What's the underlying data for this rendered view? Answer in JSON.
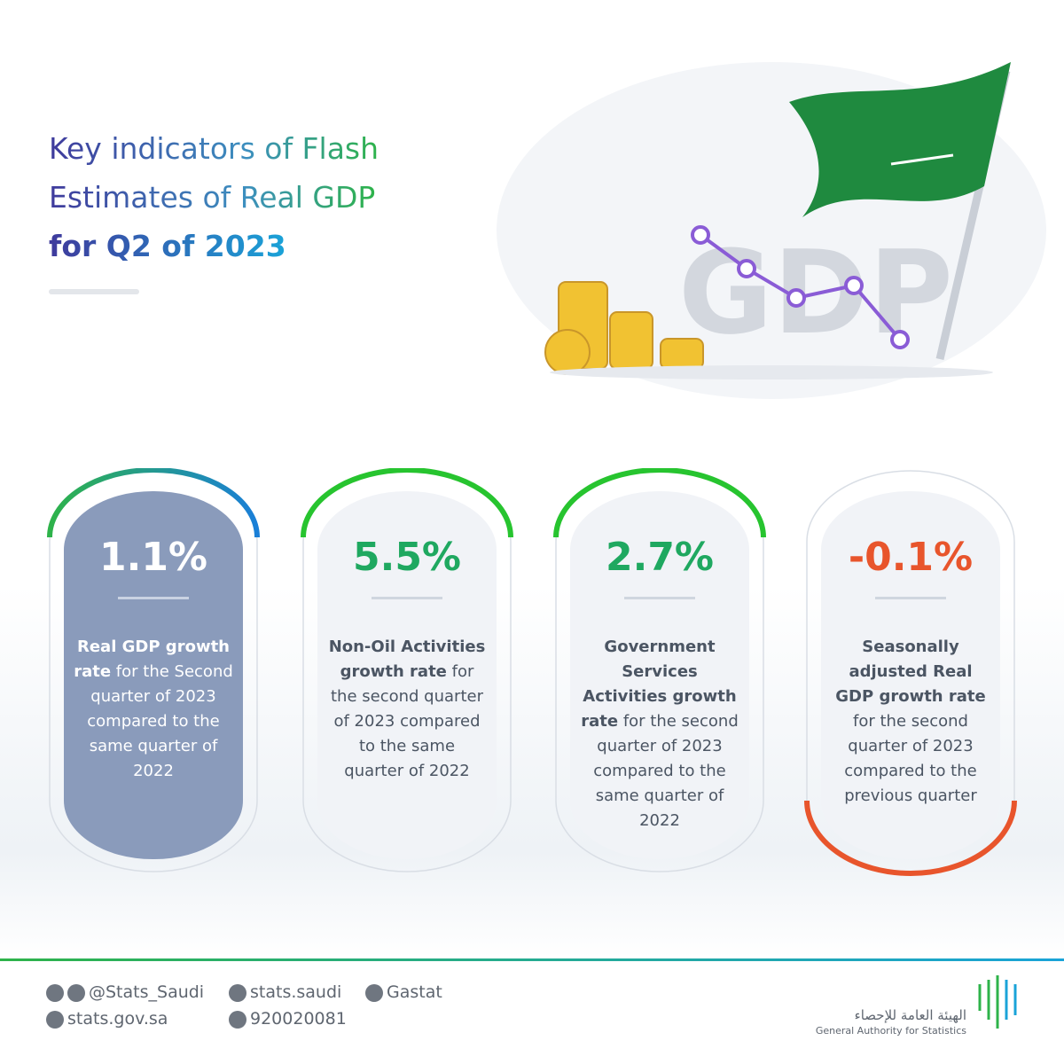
{
  "header": {
    "title": [
      "Key indicators of Flash",
      "Estimates of Real GDP",
      "for Q2 of 2023"
    ]
  },
  "illustration": {
    "label": "GDP"
  },
  "cards": [
    {
      "value": "1.1%",
      "bold": "Real GDP growth rate",
      "text": "for the Second quarter of 2023 compared to the same quarter of 2022"
    },
    {
      "value": "5.5%",
      "bold": "Non-Oil Activities growth rate",
      "text": "for the second quarter of 2023 compared to the same quarter of 2022"
    },
    {
      "value": "2.7%",
      "bold": "Government Services Activities growth rate",
      "text": "for the second quarter of 2023 compared to the same quarter of 2022"
    },
    {
      "value": "-0.1%",
      "bold": "Seasonally adjusted Real GDP growth rate",
      "text": "for the second quarter of 2023 compared to the previous quarter"
    }
  ],
  "footer": {
    "twitter": "@Stats_Saudi",
    "facebook": "stats.saudi",
    "linkedin": "Gastat",
    "website": "stats.gov.sa",
    "phone": "920020081",
    "org_arabic": "الهيئة العامة للإحصاء",
    "org_english": "General Authority for Statistics"
  }
}
